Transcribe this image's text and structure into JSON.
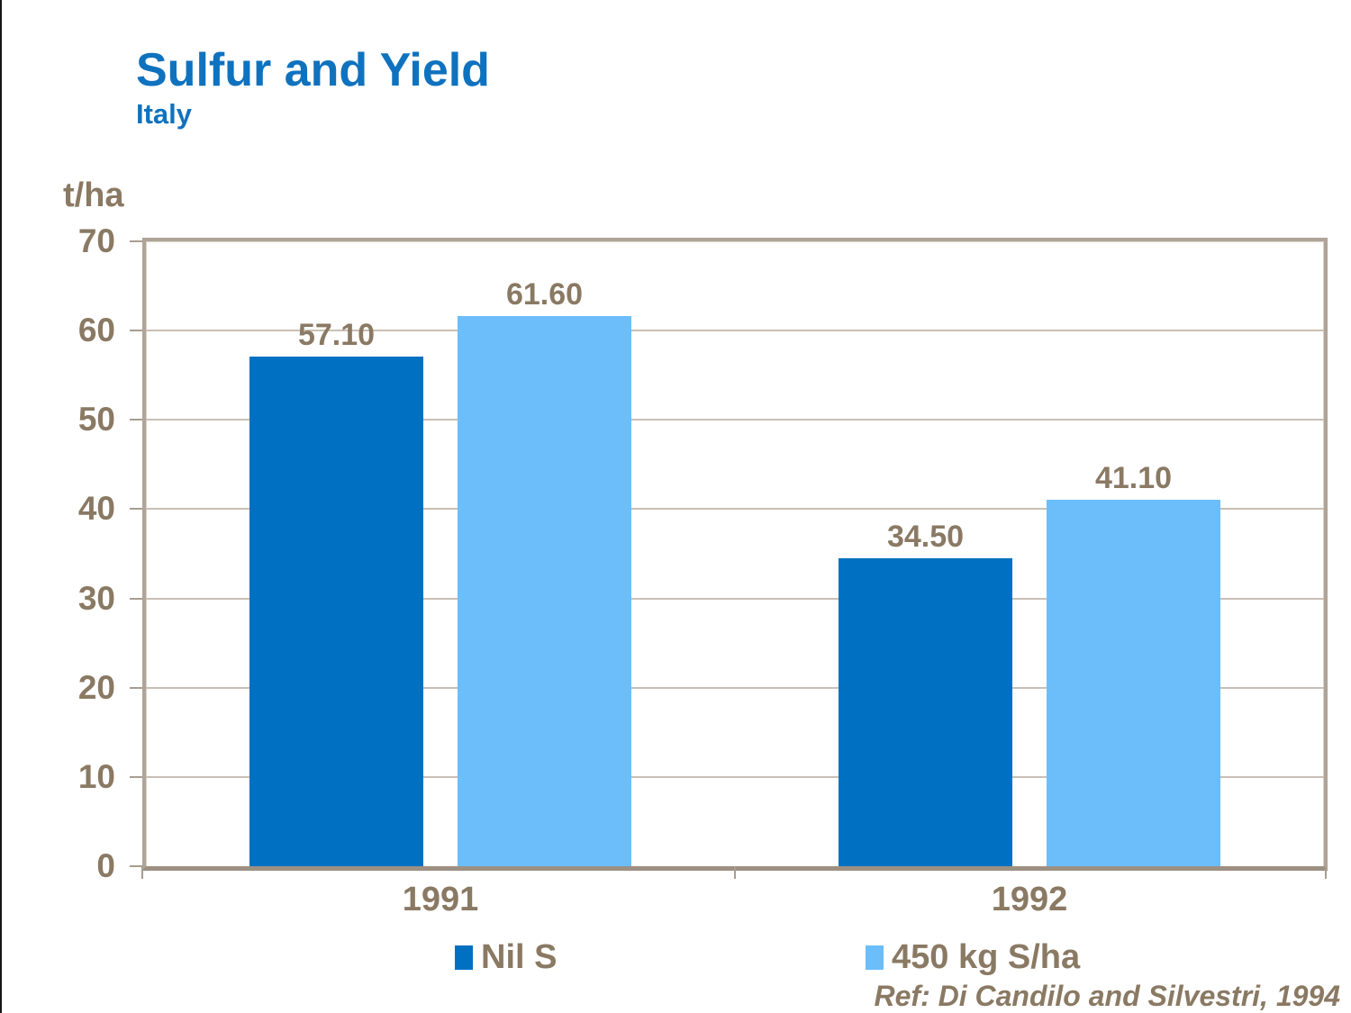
{
  "header": {
    "title": "Sulfur and Yield",
    "subtitle": "Italy"
  },
  "footer": {
    "reference": "Ref: Di Candilo and Silvestri, 1994"
  },
  "colors": {
    "title_text": "#0F72BE",
    "axis_text": "#8A7963",
    "frame": "#AFA497",
    "axis_line": "#9C9082",
    "gridline": "#C9C0B4",
    "left_edge_line": "#151515",
    "series_nil_s": "#0071C2",
    "series_450kg": "#6CBEFA"
  },
  "chart_data": {
    "type": "bar",
    "title": "Sulfur and Yield",
    "subtitle": "Italy",
    "ylabel": "t/ha",
    "xlabel": "",
    "categories": [
      "1991",
      "1992"
    ],
    "series": [
      {
        "name": "Nil S",
        "color": "#0071C2",
        "values": [
          57.1,
          34.5
        ],
        "data_labels": [
          "57.10",
          "34.50"
        ]
      },
      {
        "name": "450 kg S/ha",
        "color": "#6CBEFA",
        "values": [
          61.6,
          41.1
        ],
        "data_labels": [
          "61.60",
          "41.10"
        ]
      }
    ],
    "ylim": [
      0,
      70
    ],
    "yticks": [
      0,
      10,
      20,
      30,
      40,
      50,
      60,
      70
    ],
    "grid": true,
    "legend_position": "bottom",
    "reference": "Ref: Di Candilo and Silvestri, 1994"
  }
}
